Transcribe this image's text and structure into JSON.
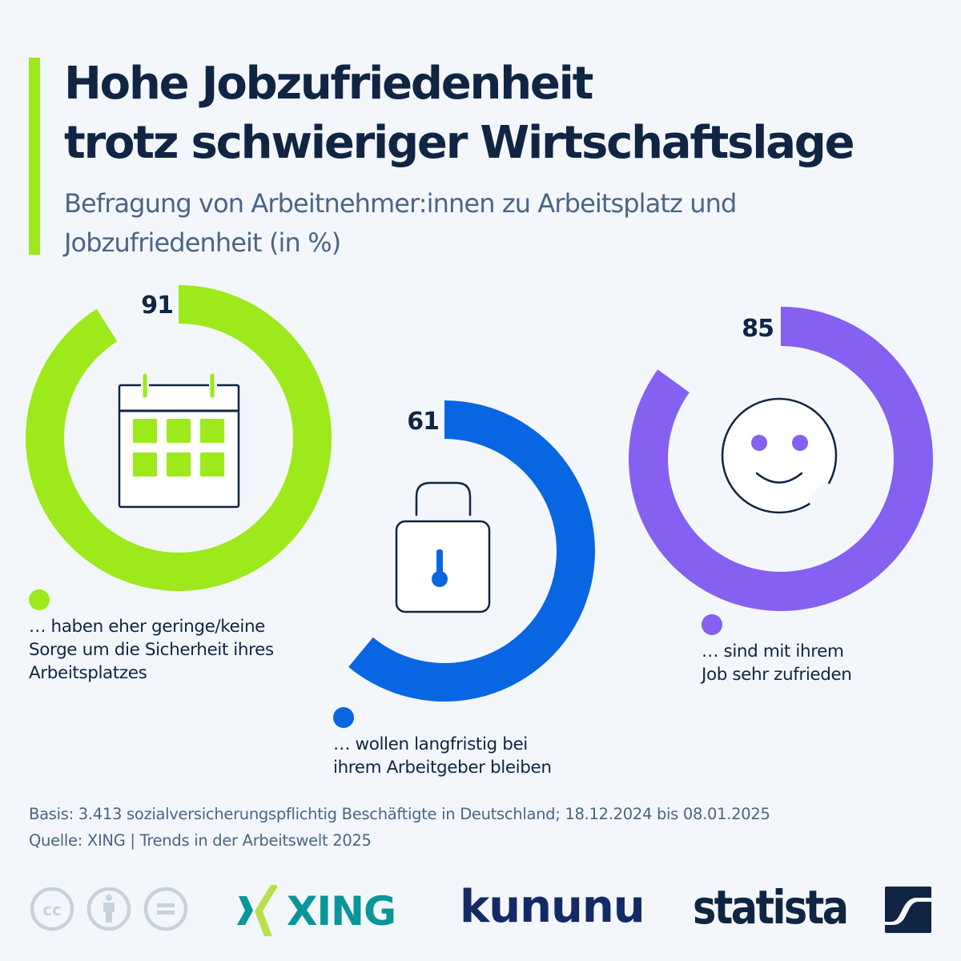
{
  "header": {
    "title_line1": "Hohe Jobzufriedenheit",
    "title_line2": "trotz schwieriger Wirtschaftslage",
    "subtitle_line1": "Befragung von Arbeitnehmer:innen zu Arbeitsplatz und",
    "subtitle_line2": "Jobzufriedenheit (in %)",
    "accent_color": "#9de91b"
  },
  "chart_data": {
    "type": "donut-progress",
    "title": "Hohe Jobzufriedenheit trotz schwieriger Wirtschaftslage",
    "subtitle": "Befragung von Arbeitnehmer:innen zu Arbeitsplatz und Jobzufriedenheit (in %)",
    "unit": "%",
    "max": 100,
    "series": [
      {
        "name": "Sicherheit Arbeitsplatz",
        "value": 91,
        "label": "91",
        "color": "#9de91b",
        "icon": "calendar-icon",
        "description_lines": [
          "… haben eher geringe/keine",
          "Sorge um die Sicherheit ihres",
          "Arbeitsplatzes"
        ]
      },
      {
        "name": "Bleiben beim Arbeitgeber",
        "value": 61,
        "label": "61",
        "color": "#0866e3",
        "icon": "padlock-icon",
        "description_lines": [
          "… wollen langfristig bei",
          "ihrem Arbeitgeber bleiben"
        ]
      },
      {
        "name": "Jobzufriedenheit",
        "value": 85,
        "label": "85",
        "color": "#8660f0",
        "icon": "smiley-face-icon",
        "description_lines": [
          "… sind mit ihrem",
          "Job sehr zufrieden"
        ]
      }
    ]
  },
  "footer": {
    "basis": "Basis: 3.413 sozialversicherungspflichtig Beschäftigte in Deutschland; 18.12.2024 bis 08.01.2025",
    "source": "Quelle: XING | Trends in der Arbeitswelt 2025",
    "logos": {
      "xing": "XING",
      "kununu": "kununu",
      "statista": "statista"
    },
    "license_icons": [
      "cc-icon",
      "attribution-icon",
      "no-derivatives-icon"
    ]
  }
}
